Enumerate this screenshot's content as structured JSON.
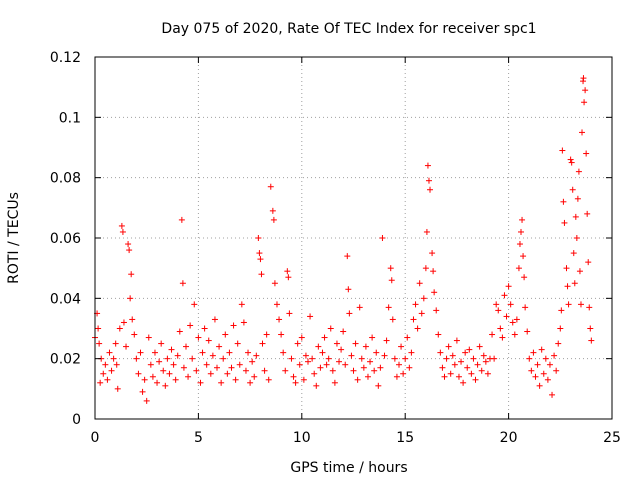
{
  "chart_data": {
    "type": "scatter",
    "title": "Day 075 of 2020, Rate Of TEC Index for receiver spc1",
    "xlabel": "GPS time / hours",
    "ylabel": "ROTI / TECUs",
    "xlim": [
      0,
      25
    ],
    "ylim": [
      0,
      0.12
    ],
    "x_ticks": [
      0,
      5,
      10,
      15,
      20,
      25
    ],
    "y_ticks": [
      0,
      0.02,
      0.04,
      0.06,
      0.08,
      0.1,
      0.12
    ],
    "x_tick_labels": [
      "0",
      "5",
      "10",
      "15",
      "20",
      "25"
    ],
    "y_tick_labels": [
      "0",
      "0.02",
      "0.04",
      "0.06",
      "0.08",
      "0.1",
      "0.12"
    ],
    "grid": true,
    "marker": "+",
    "color": "#ff0000",
    "series": [
      {
        "name": "ROTI",
        "points": [
          [
            0.0,
            0.027
          ],
          [
            0.1,
            0.035
          ],
          [
            0.15,
            0.03
          ],
          [
            0.2,
            0.025
          ],
          [
            0.25,
            0.012
          ],
          [
            0.3,
            0.02
          ],
          [
            0.4,
            0.015
          ],
          [
            0.5,
            0.018
          ],
          [
            0.6,
            0.013
          ],
          [
            0.7,
            0.022
          ],
          [
            0.8,
            0.016
          ],
          [
            0.9,
            0.02
          ],
          [
            1.0,
            0.025
          ],
          [
            1.05,
            0.018
          ],
          [
            1.1,
            0.01
          ],
          [
            1.2,
            0.03
          ],
          [
            1.3,
            0.064
          ],
          [
            1.35,
            0.062
          ],
          [
            1.4,
            0.032
          ],
          [
            1.5,
            0.024
          ],
          [
            1.6,
            0.058
          ],
          [
            1.65,
            0.056
          ],
          [
            1.7,
            0.04
          ],
          [
            1.75,
            0.048
          ],
          [
            1.8,
            0.033
          ],
          [
            1.9,
            0.028
          ],
          [
            2.0,
            0.02
          ],
          [
            2.1,
            0.015
          ],
          [
            2.2,
            0.022
          ],
          [
            2.3,
            0.009
          ],
          [
            2.4,
            0.013
          ],
          [
            2.5,
            0.006
          ],
          [
            2.6,
            0.027
          ],
          [
            2.7,
            0.018
          ],
          [
            2.8,
            0.014
          ],
          [
            2.9,
            0.022
          ],
          [
            3.0,
            0.012
          ],
          [
            3.1,
            0.019
          ],
          [
            3.2,
            0.025
          ],
          [
            3.3,
            0.016
          ],
          [
            3.4,
            0.011
          ],
          [
            3.5,
            0.02
          ],
          [
            3.6,
            0.015
          ],
          [
            3.7,
            0.023
          ],
          [
            3.8,
            0.018
          ],
          [
            3.9,
            0.013
          ],
          [
            4.0,
            0.021
          ],
          [
            4.1,
            0.029
          ],
          [
            4.2,
            0.066
          ],
          [
            4.25,
            0.045
          ],
          [
            4.3,
            0.017
          ],
          [
            4.4,
            0.024
          ],
          [
            4.5,
            0.014
          ],
          [
            4.6,
            0.031
          ],
          [
            4.7,
            0.02
          ],
          [
            4.8,
            0.038
          ],
          [
            4.9,
            0.016
          ],
          [
            5.0,
            0.027
          ],
          [
            5.1,
            0.012
          ],
          [
            5.2,
            0.022
          ],
          [
            5.3,
            0.03
          ],
          [
            5.4,
            0.018
          ],
          [
            5.5,
            0.026
          ],
          [
            5.6,
            0.015
          ],
          [
            5.7,
            0.021
          ],
          [
            5.8,
            0.033
          ],
          [
            5.9,
            0.017
          ],
          [
            6.0,
            0.024
          ],
          [
            6.1,
            0.012
          ],
          [
            6.2,
            0.02
          ],
          [
            6.3,
            0.028
          ],
          [
            6.4,
            0.015
          ],
          [
            6.5,
            0.022
          ],
          [
            6.6,
            0.017
          ],
          [
            6.7,
            0.031
          ],
          [
            6.8,
            0.013
          ],
          [
            6.9,
            0.025
          ],
          [
            7.0,
            0.018
          ],
          [
            7.1,
            0.038
          ],
          [
            7.2,
            0.032
          ],
          [
            7.3,
            0.016
          ],
          [
            7.4,
            0.022
          ],
          [
            7.5,
            0.012
          ],
          [
            7.6,
            0.019
          ],
          [
            7.7,
            0.014
          ],
          [
            7.8,
            0.021
          ],
          [
            7.9,
            0.06
          ],
          [
            7.95,
            0.055
          ],
          [
            8.0,
            0.053
          ],
          [
            8.05,
            0.048
          ],
          [
            8.1,
            0.025
          ],
          [
            8.2,
            0.016
          ],
          [
            8.3,
            0.028
          ],
          [
            8.4,
            0.013
          ],
          [
            8.5,
            0.077
          ],
          [
            8.6,
            0.069
          ],
          [
            8.65,
            0.066
          ],
          [
            8.7,
            0.045
          ],
          [
            8.8,
            0.038
          ],
          [
            8.9,
            0.033
          ],
          [
            9.0,
            0.028
          ],
          [
            9.1,
            0.022
          ],
          [
            9.2,
            0.016
          ],
          [
            9.3,
            0.049
          ],
          [
            9.35,
            0.047
          ],
          [
            9.4,
            0.035
          ],
          [
            9.5,
            0.02
          ],
          [
            9.6,
            0.014
          ],
          [
            9.7,
            0.012
          ],
          [
            9.8,
            0.025
          ],
          [
            9.9,
            0.018
          ],
          [
            10.0,
            0.027
          ],
          [
            10.1,
            0.013
          ],
          [
            10.2,
            0.021
          ],
          [
            10.3,
            0.019
          ],
          [
            10.4,
            0.034
          ],
          [
            10.5,
            0.02
          ],
          [
            10.6,
            0.015
          ],
          [
            10.7,
            0.011
          ],
          [
            10.8,
            0.024
          ],
          [
            10.9,
            0.017
          ],
          [
            11.0,
            0.022
          ],
          [
            11.1,
            0.027
          ],
          [
            11.2,
            0.018
          ],
          [
            11.3,
            0.02
          ],
          [
            11.4,
            0.03
          ],
          [
            11.5,
            0.016
          ],
          [
            11.6,
            0.012
          ],
          [
            11.7,
            0.025
          ],
          [
            11.8,
            0.019
          ],
          [
            11.9,
            0.023
          ],
          [
            12.0,
            0.029
          ],
          [
            12.1,
            0.018
          ],
          [
            12.2,
            0.054
          ],
          [
            12.25,
            0.043
          ],
          [
            12.3,
            0.035
          ],
          [
            12.4,
            0.021
          ],
          [
            12.5,
            0.016
          ],
          [
            12.6,
            0.025
          ],
          [
            12.7,
            0.013
          ],
          [
            12.8,
            0.037
          ],
          [
            12.9,
            0.02
          ],
          [
            13.0,
            0.017
          ],
          [
            13.1,
            0.024
          ],
          [
            13.2,
            0.014
          ],
          [
            13.3,
            0.019
          ],
          [
            13.4,
            0.027
          ],
          [
            13.5,
            0.016
          ],
          [
            13.6,
            0.022
          ],
          [
            13.7,
            0.011
          ],
          [
            13.8,
            0.017
          ],
          [
            13.9,
            0.06
          ],
          [
            14.0,
            0.021
          ],
          [
            14.1,
            0.026
          ],
          [
            14.2,
            0.037
          ],
          [
            14.3,
            0.05
          ],
          [
            14.35,
            0.046
          ],
          [
            14.4,
            0.033
          ],
          [
            14.5,
            0.02
          ],
          [
            14.6,
            0.014
          ],
          [
            14.7,
            0.018
          ],
          [
            14.8,
            0.024
          ],
          [
            14.9,
            0.015
          ],
          [
            15.0,
            0.02
          ],
          [
            15.1,
            0.027
          ],
          [
            15.2,
            0.017
          ],
          [
            15.3,
            0.022
          ],
          [
            15.4,
            0.033
          ],
          [
            15.5,
            0.038
          ],
          [
            15.6,
            0.03
          ],
          [
            15.7,
            0.045
          ],
          [
            15.8,
            0.035
          ],
          [
            15.9,
            0.04
          ],
          [
            16.0,
            0.05
          ],
          [
            16.05,
            0.062
          ],
          [
            16.1,
            0.084
          ],
          [
            16.15,
            0.079
          ],
          [
            16.2,
            0.076
          ],
          [
            16.3,
            0.055
          ],
          [
            16.35,
            0.049
          ],
          [
            16.4,
            0.042
          ],
          [
            16.5,
            0.036
          ],
          [
            16.6,
            0.028
          ],
          [
            16.7,
            0.022
          ],
          [
            16.8,
            0.017
          ],
          [
            16.9,
            0.014
          ],
          [
            17.0,
            0.02
          ],
          [
            17.1,
            0.024
          ],
          [
            17.2,
            0.015
          ],
          [
            17.3,
            0.021
          ],
          [
            17.4,
            0.018
          ],
          [
            17.5,
            0.026
          ],
          [
            17.6,
            0.014
          ],
          [
            17.7,
            0.019
          ],
          [
            17.8,
            0.012
          ],
          [
            17.9,
            0.022
          ],
          [
            18.0,
            0.017
          ],
          [
            18.1,
            0.023
          ],
          [
            18.2,
            0.015
          ],
          [
            18.3,
            0.02
          ],
          [
            18.4,
            0.013
          ],
          [
            18.5,
            0.018
          ],
          [
            18.6,
            0.024
          ],
          [
            18.7,
            0.016
          ],
          [
            18.8,
            0.021
          ],
          [
            18.9,
            0.019
          ],
          [
            19.0,
            0.015
          ],
          [
            19.1,
            0.02
          ],
          [
            19.2,
            0.028
          ],
          [
            19.3,
            0.02
          ],
          [
            19.4,
            0.038
          ],
          [
            19.5,
            0.036
          ],
          [
            19.6,
            0.03
          ],
          [
            19.7,
            0.027
          ],
          [
            19.8,
            0.041
          ],
          [
            19.9,
            0.034
          ],
          [
            20.0,
            0.044
          ],
          [
            20.1,
            0.038
          ],
          [
            20.2,
            0.032
          ],
          [
            20.3,
            0.028
          ],
          [
            20.4,
            0.033
          ],
          [
            20.5,
            0.05
          ],
          [
            20.55,
            0.058
          ],
          [
            20.6,
            0.062
          ],
          [
            20.65,
            0.066
          ],
          [
            20.7,
            0.054
          ],
          [
            20.75,
            0.047
          ],
          [
            20.8,
            0.037
          ],
          [
            20.9,
            0.029
          ],
          [
            21.0,
            0.02
          ],
          [
            21.1,
            0.016
          ],
          [
            21.2,
            0.022
          ],
          [
            21.3,
            0.014
          ],
          [
            21.4,
            0.018
          ],
          [
            21.5,
            0.011
          ],
          [
            21.6,
            0.023
          ],
          [
            21.7,
            0.015
          ],
          [
            21.8,
            0.02
          ],
          [
            21.9,
            0.013
          ],
          [
            22.0,
            0.018
          ],
          [
            22.1,
            0.008
          ],
          [
            22.2,
            0.021
          ],
          [
            22.3,
            0.016
          ],
          [
            22.4,
            0.025
          ],
          [
            22.5,
            0.03
          ],
          [
            22.55,
            0.036
          ],
          [
            22.6,
            0.089
          ],
          [
            22.65,
            0.072
          ],
          [
            22.7,
            0.065
          ],
          [
            22.8,
            0.05
          ],
          [
            22.85,
            0.044
          ],
          [
            22.9,
            0.038
          ],
          [
            23.0,
            0.086
          ],
          [
            23.05,
            0.085
          ],
          [
            23.1,
            0.076
          ],
          [
            23.15,
            0.055
          ],
          [
            23.2,
            0.045
          ],
          [
            23.25,
            0.067
          ],
          [
            23.3,
            0.06
          ],
          [
            23.35,
            0.073
          ],
          [
            23.4,
            0.082
          ],
          [
            23.45,
            0.049
          ],
          [
            23.5,
            0.038
          ],
          [
            23.55,
            0.095
          ],
          [
            23.6,
            0.112
          ],
          [
            23.62,
            0.113
          ],
          [
            23.65,
            0.105
          ],
          [
            23.7,
            0.109
          ],
          [
            23.75,
            0.088
          ],
          [
            23.8,
            0.068
          ],
          [
            23.85,
            0.052
          ],
          [
            23.9,
            0.037
          ],
          [
            23.95,
            0.03
          ],
          [
            24.0,
            0.026
          ]
        ]
      }
    ]
  }
}
